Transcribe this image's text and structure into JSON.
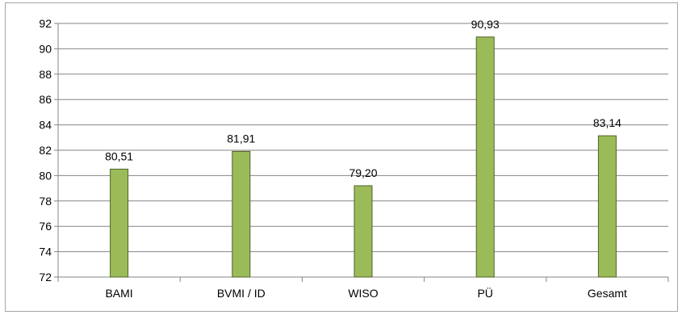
{
  "chart_data": {
    "type": "bar",
    "categories": [
      "BAMI",
      "BVMI / ID",
      "WISO",
      "PÜ",
      "Gesamt"
    ],
    "values": [
      80.51,
      81.91,
      79.2,
      90.93,
      83.14
    ],
    "data_labels": [
      "80,51",
      "81,91",
      "79,20",
      "90,93",
      "83,14"
    ],
    "yticks": [
      72,
      74,
      76,
      78,
      80,
      82,
      84,
      86,
      88,
      90,
      92
    ],
    "ylim": [
      72,
      92
    ],
    "grid": true,
    "legend": "none",
    "colors": {
      "bar_fill": "#9bbb59",
      "bar_stroke": "#4f6228",
      "grid": "#868686",
      "axis": "#868686"
    }
  }
}
